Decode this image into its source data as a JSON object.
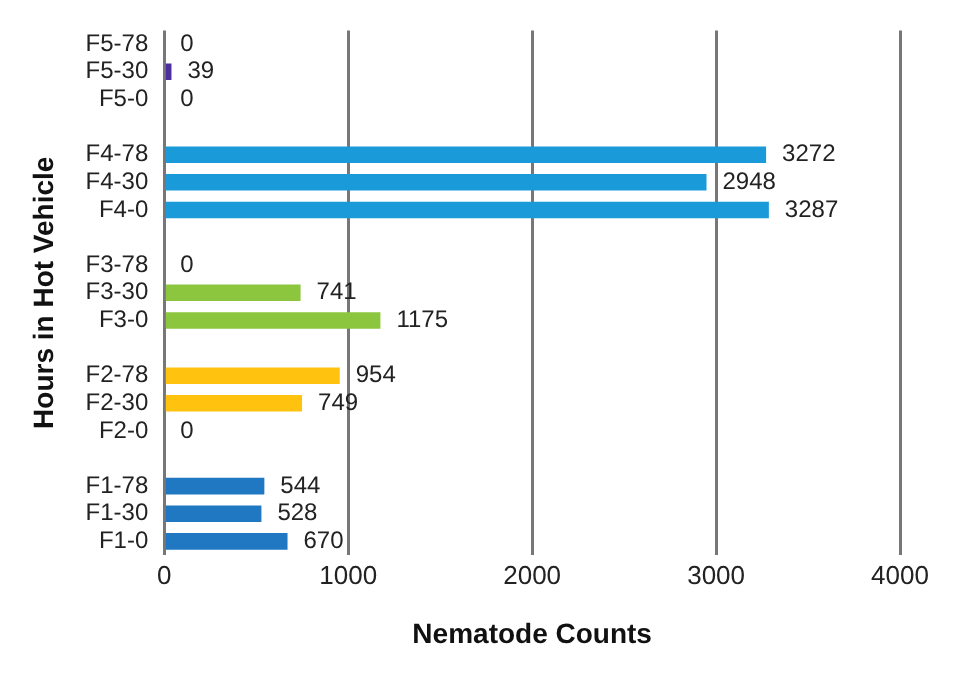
{
  "chart_data": {
    "type": "bar",
    "orientation": "horizontal",
    "xlabel": "Nematode Counts",
    "ylabel": "Hours in Hot Vehicle",
    "categories": [
      "F5-78",
      "F5-30",
      "F5-0",
      null,
      "F4-78",
      "F4-30",
      "F4-0",
      null,
      "F3-78",
      "F3-30",
      "F3-0",
      null,
      "F2-78",
      "F2-30",
      "F2-0",
      null,
      "F1-78",
      "F1-30",
      "F1-0"
    ],
    "values": [
      0,
      39,
      0,
      null,
      3272,
      2948,
      3287,
      null,
      0,
      741,
      1175,
      null,
      954,
      749,
      0,
      null,
      544,
      528,
      670
    ],
    "colors": [
      "#4b2f9e",
      "#4b2f9e",
      "#4b2f9e",
      null,
      "#1a9ad9",
      "#1a9ad9",
      "#1a9ad9",
      null,
      "#8cc63f",
      "#8cc63f",
      "#8cc63f",
      null,
      "#ffc20e",
      "#ffc20e",
      "#ffc20e",
      null,
      "#1f78c1",
      "#1f78c1",
      "#1f78c1"
    ],
    "xlim": [
      0,
      4000
    ],
    "xticks": [
      0,
      1000,
      2000,
      3000,
      4000
    ],
    "grid": "x",
    "data_labels": true,
    "legend": false
  }
}
